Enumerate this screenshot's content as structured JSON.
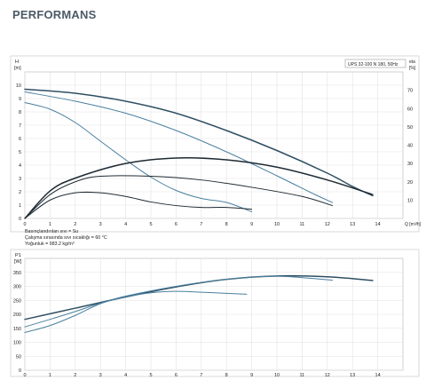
{
  "page": {
    "heading": "PERFORMANS"
  },
  "chart_data": [
    {
      "type": "line",
      "model_label": "UPS 32-100 N 180, 50Hz",
      "xlabel": "Q [m³/h]",
      "ylabel": "H [m]",
      "y2label": "eta [%]",
      "xlim": [
        0,
        15
      ],
      "ylim": [
        0,
        11
      ],
      "y2lim": [
        0,
        80
      ],
      "xticks": [
        0,
        1,
        2,
        3,
        4,
        5,
        6,
        7,
        8,
        9,
        10,
        11,
        12,
        13,
        14
      ],
      "yticks": [
        0,
        1,
        2,
        3,
        4,
        5,
        6,
        7,
        8,
        9,
        10
      ],
      "y2ticks": [
        10,
        20,
        30,
        40,
        50,
        60,
        70
      ],
      "notes": [
        "Basınçlandırılan sıvı = Su",
        "Çalışma sırasında sıvı sıcaklığı = 60 °C",
        "Yoğunluk = 983.2 kg/m³"
      ],
      "series": [
        {
          "axis": "left",
          "color": "#2f4f63",
          "width": 1.5,
          "x": [
            0,
            2,
            4,
            6,
            8,
            10,
            12,
            13,
            13.8
          ],
          "y": [
            9.7,
            9.4,
            8.8,
            7.9,
            6.6,
            5.1,
            3.4,
            2.4,
            1.7
          ]
        },
        {
          "axis": "left",
          "color": "#4a7f9e",
          "width": 1.0,
          "x": [
            0,
            2,
            4,
            6,
            8,
            10,
            11.5,
            12.2
          ],
          "y": [
            9.5,
            8.8,
            7.9,
            6.6,
            5.0,
            3.2,
            1.8,
            1.2
          ]
        },
        {
          "axis": "left",
          "color": "#4a7f9e",
          "width": 1.0,
          "x": [
            0,
            1,
            2,
            3,
            4,
            5,
            6,
            7,
            8,
            9
          ],
          "y": [
            8.7,
            8.2,
            7.2,
            5.8,
            4.4,
            3.1,
            2.1,
            1.5,
            1.2,
            0.5
          ]
        },
        {
          "axis": "right",
          "color": "#1e2a33",
          "width": 1.5,
          "x": [
            0,
            1,
            2,
            4,
            6,
            8,
            10,
            12,
            13.8
          ],
          "y": [
            0,
            15,
            22,
            30,
            33,
            32,
            28,
            21,
            13
          ]
        },
        {
          "axis": "right",
          "color": "#1e2a33",
          "width": 1.0,
          "x": [
            0,
            1,
            2,
            3,
            5,
            7,
            9,
            11,
            12.2
          ],
          "y": [
            0,
            13,
            20,
            23,
            23,
            21,
            17,
            12,
            7
          ]
        },
        {
          "axis": "right",
          "color": "#1e2a33",
          "width": 1.0,
          "x": [
            0,
            1,
            2,
            3,
            4,
            5,
            6,
            7,
            8,
            9
          ],
          "y": [
            0,
            10,
            14,
            14,
            12,
            9,
            7,
            6,
            6,
            5
          ]
        }
      ]
    },
    {
      "type": "line",
      "xlabel": "",
      "ylabel": "P1 [W]",
      "xlim": [
        0,
        15
      ],
      "ylim": [
        0,
        400
      ],
      "xticks": [
        0,
        1,
        2,
        3,
        4,
        5,
        6,
        7,
        8,
        9,
        10,
        11,
        12,
        13,
        14
      ],
      "yticks": [
        0,
        50,
        100,
        150,
        200,
        250,
        300,
        350
      ],
      "series": [
        {
          "color": "#2f4f63",
          "width": 1.5,
          "x": [
            0,
            2,
            4,
            6,
            8,
            10,
            12,
            13.8
          ],
          "y": [
            182,
            222,
            262,
            298,
            325,
            337,
            334,
            321
          ]
        },
        {
          "color": "#4a7f9e",
          "width": 1.0,
          "x": [
            0,
            1,
            2,
            3,
            4,
            6,
            8,
            10,
            12.2
          ],
          "y": [
            155,
            182,
            210,
            240,
            265,
            300,
            325,
            336,
            322
          ]
        },
        {
          "color": "#4a7f9e",
          "width": 1.0,
          "x": [
            0,
            1,
            2,
            3,
            4,
            5,
            6,
            7,
            8,
            8.8
          ],
          "y": [
            135,
            160,
            196,
            238,
            262,
            277,
            282,
            279,
            275,
            272
          ]
        }
      ]
    }
  ]
}
